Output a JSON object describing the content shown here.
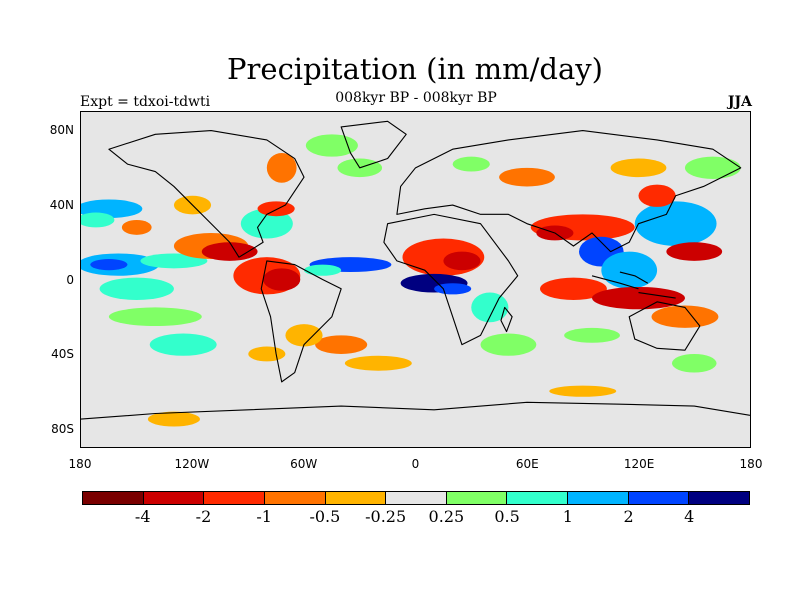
{
  "title": "Precipitation (in mm/day)",
  "subtitle": "008kyr BP - 008kyr BP",
  "expt_label": "Expt = tdxoi-tdwti",
  "season": "JJA",
  "map": {
    "projection": "cylindrical-equidistant",
    "lon_range": [
      -180,
      180
    ],
    "lat_range": [
      -90,
      90
    ],
    "background_color": "#e6e6e6",
    "lat_ticks": [
      {
        "value": 80,
        "label": "80N"
      },
      {
        "value": 40,
        "label": "40N"
      },
      {
        "value": 0,
        "label": "0"
      },
      {
        "value": -40,
        "label": "40S"
      },
      {
        "value": -80,
        "label": "80S"
      }
    ],
    "lon_ticks": [
      {
        "value": -180,
        "label": "180"
      },
      {
        "value": -120,
        "label": "120W"
      },
      {
        "value": -60,
        "label": "60W"
      },
      {
        "value": 0,
        "label": "0"
      },
      {
        "value": 60,
        "label": "60E"
      },
      {
        "value": 120,
        "label": "120E"
      },
      {
        "value": 180,
        "label": "180"
      }
    ]
  },
  "colorbar": {
    "colors": [
      "#7a0000",
      "#cc0000",
      "#ff2a00",
      "#ff7300",
      "#ffb400",
      "#e6e6e6",
      "#80ff66",
      "#33ffcc",
      "#00b4ff",
      "#0044ff",
      "#000080"
    ],
    "labels": [
      "-4",
      "-2",
      "-1",
      "-0.5",
      "-0.25",
      "0.25",
      "0.5",
      "1",
      "2",
      "4"
    ]
  },
  "fields": [
    {
      "lon": -160,
      "lat": 8,
      "rx": 22,
      "ry": 6,
      "color_index": 8
    },
    {
      "lon": -165,
      "lat": 8,
      "rx": 10,
      "ry": 3,
      "color_index": 9
    },
    {
      "lon": -130,
      "lat": 10,
      "rx": 18,
      "ry": 4,
      "color_index": 7
    },
    {
      "lon": -150,
      "lat": -5,
      "rx": 20,
      "ry": 6,
      "color_index": 7
    },
    {
      "lon": -140,
      "lat": -20,
      "rx": 25,
      "ry": 5,
      "color_index": 6
    },
    {
      "lon": -125,
      "lat": -35,
      "rx": 18,
      "ry": 6,
      "color_index": 7
    },
    {
      "lon": -165,
      "lat": 38,
      "rx": 18,
      "ry": 5,
      "color_index": 8
    },
    {
      "lon": -172,
      "lat": 32,
      "rx": 10,
      "ry": 4,
      "color_index": 7
    },
    {
      "lon": -150,
      "lat": 28,
      "rx": 8,
      "ry": 4,
      "color_index": 3
    },
    {
      "lon": -120,
      "lat": 40,
      "rx": 10,
      "ry": 5,
      "color_index": 4
    },
    {
      "lon": -110,
      "lat": 18,
      "rx": 20,
      "ry": 7,
      "color_index": 3
    },
    {
      "lon": -100,
      "lat": 15,
      "rx": 15,
      "ry": 5,
      "color_index": 1
    },
    {
      "lon": -80,
      "lat": 2,
      "rx": 18,
      "ry": 10,
      "color_index": 2
    },
    {
      "lon": -72,
      "lat": 0,
      "rx": 10,
      "ry": 6,
      "color_index": 1
    },
    {
      "lon": -80,
      "lat": 30,
      "rx": 14,
      "ry": 8,
      "color_index": 7
    },
    {
      "lon": -75,
      "lat": 38,
      "rx": 10,
      "ry": 4,
      "color_index": 2
    },
    {
      "lon": -72,
      "lat": 60,
      "rx": 8,
      "ry": 8,
      "color_index": 3
    },
    {
      "lon": -45,
      "lat": 72,
      "rx": 14,
      "ry": 6,
      "color_index": 6
    },
    {
      "lon": -30,
      "lat": 60,
      "rx": 12,
      "ry": 5,
      "color_index": 6
    },
    {
      "lon": -35,
      "lat": 8,
      "rx": 22,
      "ry": 4,
      "color_index": 9
    },
    {
      "lon": -50,
      "lat": 5,
      "rx": 10,
      "ry": 3,
      "color_index": 7
    },
    {
      "lon": -40,
      "lat": -35,
      "rx": 14,
      "ry": 5,
      "color_index": 3
    },
    {
      "lon": -60,
      "lat": -30,
      "rx": 10,
      "ry": 6,
      "color_index": 4
    },
    {
      "lon": -80,
      "lat": -40,
      "rx": 10,
      "ry": 4,
      "color_index": 4
    },
    {
      "lon": -20,
      "lat": -45,
      "rx": 18,
      "ry": 4,
      "color_index": 4
    },
    {
      "lon": -130,
      "lat": -75,
      "rx": 14,
      "ry": 4,
      "color_index": 4
    },
    {
      "lon": 15,
      "lat": 12,
      "rx": 22,
      "ry": 10,
      "color_index": 2
    },
    {
      "lon": 25,
      "lat": 10,
      "rx": 10,
      "ry": 5,
      "color_index": 1
    },
    {
      "lon": 10,
      "lat": -2,
      "rx": 18,
      "ry": 5,
      "color_index": 10
    },
    {
      "lon": 20,
      "lat": -5,
      "rx": 10,
      "ry": 3,
      "color_index": 9
    },
    {
      "lon": 40,
      "lat": -15,
      "rx": 10,
      "ry": 8,
      "color_index": 7
    },
    {
      "lon": 50,
      "lat": -35,
      "rx": 15,
      "ry": 6,
      "color_index": 6
    },
    {
      "lon": 90,
      "lat": 28,
      "rx": 28,
      "ry": 7,
      "color_index": 2
    },
    {
      "lon": 75,
      "lat": 25,
      "rx": 10,
      "ry": 4,
      "color_index": 1
    },
    {
      "lon": 100,
      "lat": 15,
      "rx": 12,
      "ry": 8,
      "color_index": 9
    },
    {
      "lon": 115,
      "lat": 5,
      "rx": 15,
      "ry": 10,
      "color_index": 8
    },
    {
      "lon": 85,
      "lat": -5,
      "rx": 18,
      "ry": 6,
      "color_index": 2
    },
    {
      "lon": 120,
      "lat": -10,
      "rx": 25,
      "ry": 6,
      "color_index": 1
    },
    {
      "lon": 140,
      "lat": 30,
      "rx": 22,
      "ry": 12,
      "color_index": 8
    },
    {
      "lon": 130,
      "lat": 45,
      "rx": 10,
      "ry": 6,
      "color_index": 2
    },
    {
      "lon": 150,
      "lat": 15,
      "rx": 15,
      "ry": 5,
      "color_index": 1
    },
    {
      "lon": 145,
      "lat": -20,
      "rx": 18,
      "ry": 6,
      "color_index": 3
    },
    {
      "lon": 150,
      "lat": -45,
      "rx": 12,
      "ry": 5,
      "color_index": 6
    },
    {
      "lon": 95,
      "lat": -30,
      "rx": 15,
      "ry": 4,
      "color_index": 6
    },
    {
      "lon": 90,
      "lat": -60,
      "rx": 18,
      "ry": 3,
      "color_index": 4
    },
    {
      "lon": 160,
      "lat": 60,
      "rx": 15,
      "ry": 6,
      "color_index": 6
    },
    {
      "lon": 120,
      "lat": 60,
      "rx": 15,
      "ry": 5,
      "color_index": 4
    },
    {
      "lon": 60,
      "lat": 55,
      "rx": 15,
      "ry": 5,
      "color_index": 3
    },
    {
      "lon": 30,
      "lat": 62,
      "rx": 10,
      "ry": 4,
      "color_index": 6
    }
  ]
}
